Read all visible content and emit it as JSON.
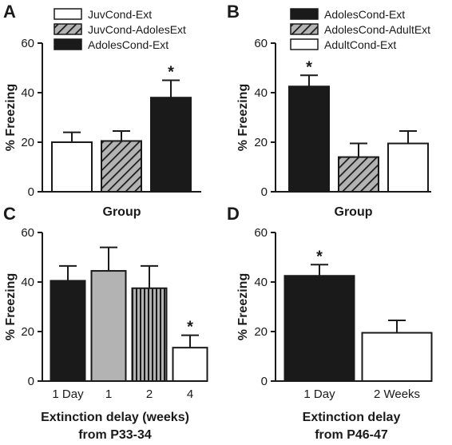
{
  "colors": {
    "black": "#1a1a1a",
    "gray": "#b3b3b3",
    "white": "#ffffff"
  },
  "chart_data": [
    {
      "panel": "A",
      "type": "bar",
      "ylabel": "% Freezing",
      "xlabel": "Group",
      "ylim": [
        0,
        60
      ],
      "yticks": [
        0,
        20,
        40,
        60
      ],
      "legend": [
        "JuvCond-Ext",
        "JuvCond-AdolesExt",
        "AdolesCond-Ext"
      ],
      "bars": [
        {
          "label": "JuvCond-Ext",
          "value": 20,
          "error": 4,
          "fill": "white",
          "star": false
        },
        {
          "label": "JuvCond-AdolesExt",
          "value": 20.5,
          "error": 4,
          "fill": "hatch",
          "star": false
        },
        {
          "label": "AdolesCond-Ext",
          "value": 38,
          "error": 7,
          "fill": "black",
          "star": true
        }
      ]
    },
    {
      "panel": "B",
      "type": "bar",
      "ylabel": "% Freezing",
      "xlabel": "Group",
      "ylim": [
        0,
        60
      ],
      "yticks": [
        0,
        20,
        40,
        60
      ],
      "legend": [
        "AdolesCond-Ext",
        "AdolesCond-AdultExt",
        "AdultCond-Ext"
      ],
      "bars": [
        {
          "label": "AdolesCond-Ext",
          "value": 42.5,
          "error": 4.5,
          "fill": "black",
          "star": true
        },
        {
          "label": "AdolesCond-AdultExt",
          "value": 14,
          "error": 5.5,
          "fill": "hatch",
          "star": false
        },
        {
          "label": "AdultCond-Ext",
          "value": 19.5,
          "error": 5,
          "fill": "white",
          "star": false
        }
      ]
    },
    {
      "panel": "C",
      "type": "bar",
      "ylabel": "% Freezing",
      "xlabel": "Extinction delay (weeks)",
      "xlabel2": "from P33-34",
      "ylim": [
        0,
        60
      ],
      "yticks": [
        0,
        20,
        40,
        60
      ],
      "categories": [
        "1 Day",
        "1",
        "2",
        "4"
      ],
      "bars": [
        {
          "label": "1 Day",
          "value": 40.5,
          "error": 6,
          "fill": "black",
          "star": false
        },
        {
          "label": "1",
          "value": 44.5,
          "error": 9.5,
          "fill": "gray",
          "star": false
        },
        {
          "label": "2",
          "value": 37.5,
          "error": 9,
          "fill": "stripes",
          "star": false
        },
        {
          "label": "4",
          "value": 13.5,
          "error": 5,
          "fill": "white",
          "star": true
        }
      ]
    },
    {
      "panel": "D",
      "type": "bar",
      "ylabel": "% Freezing",
      "xlabel": "Extinction delay",
      "xlabel2": "from P46-47",
      "ylim": [
        0,
        60
      ],
      "yticks": [
        0,
        20,
        40,
        60
      ],
      "categories": [
        "1 Day",
        "2 Weeks"
      ],
      "bars": [
        {
          "label": "1 Day",
          "value": 42.5,
          "error": 4.5,
          "fill": "black",
          "star": true
        },
        {
          "label": "2 Weeks",
          "value": 19.5,
          "error": 5,
          "fill": "white",
          "star": false
        }
      ]
    }
  ]
}
